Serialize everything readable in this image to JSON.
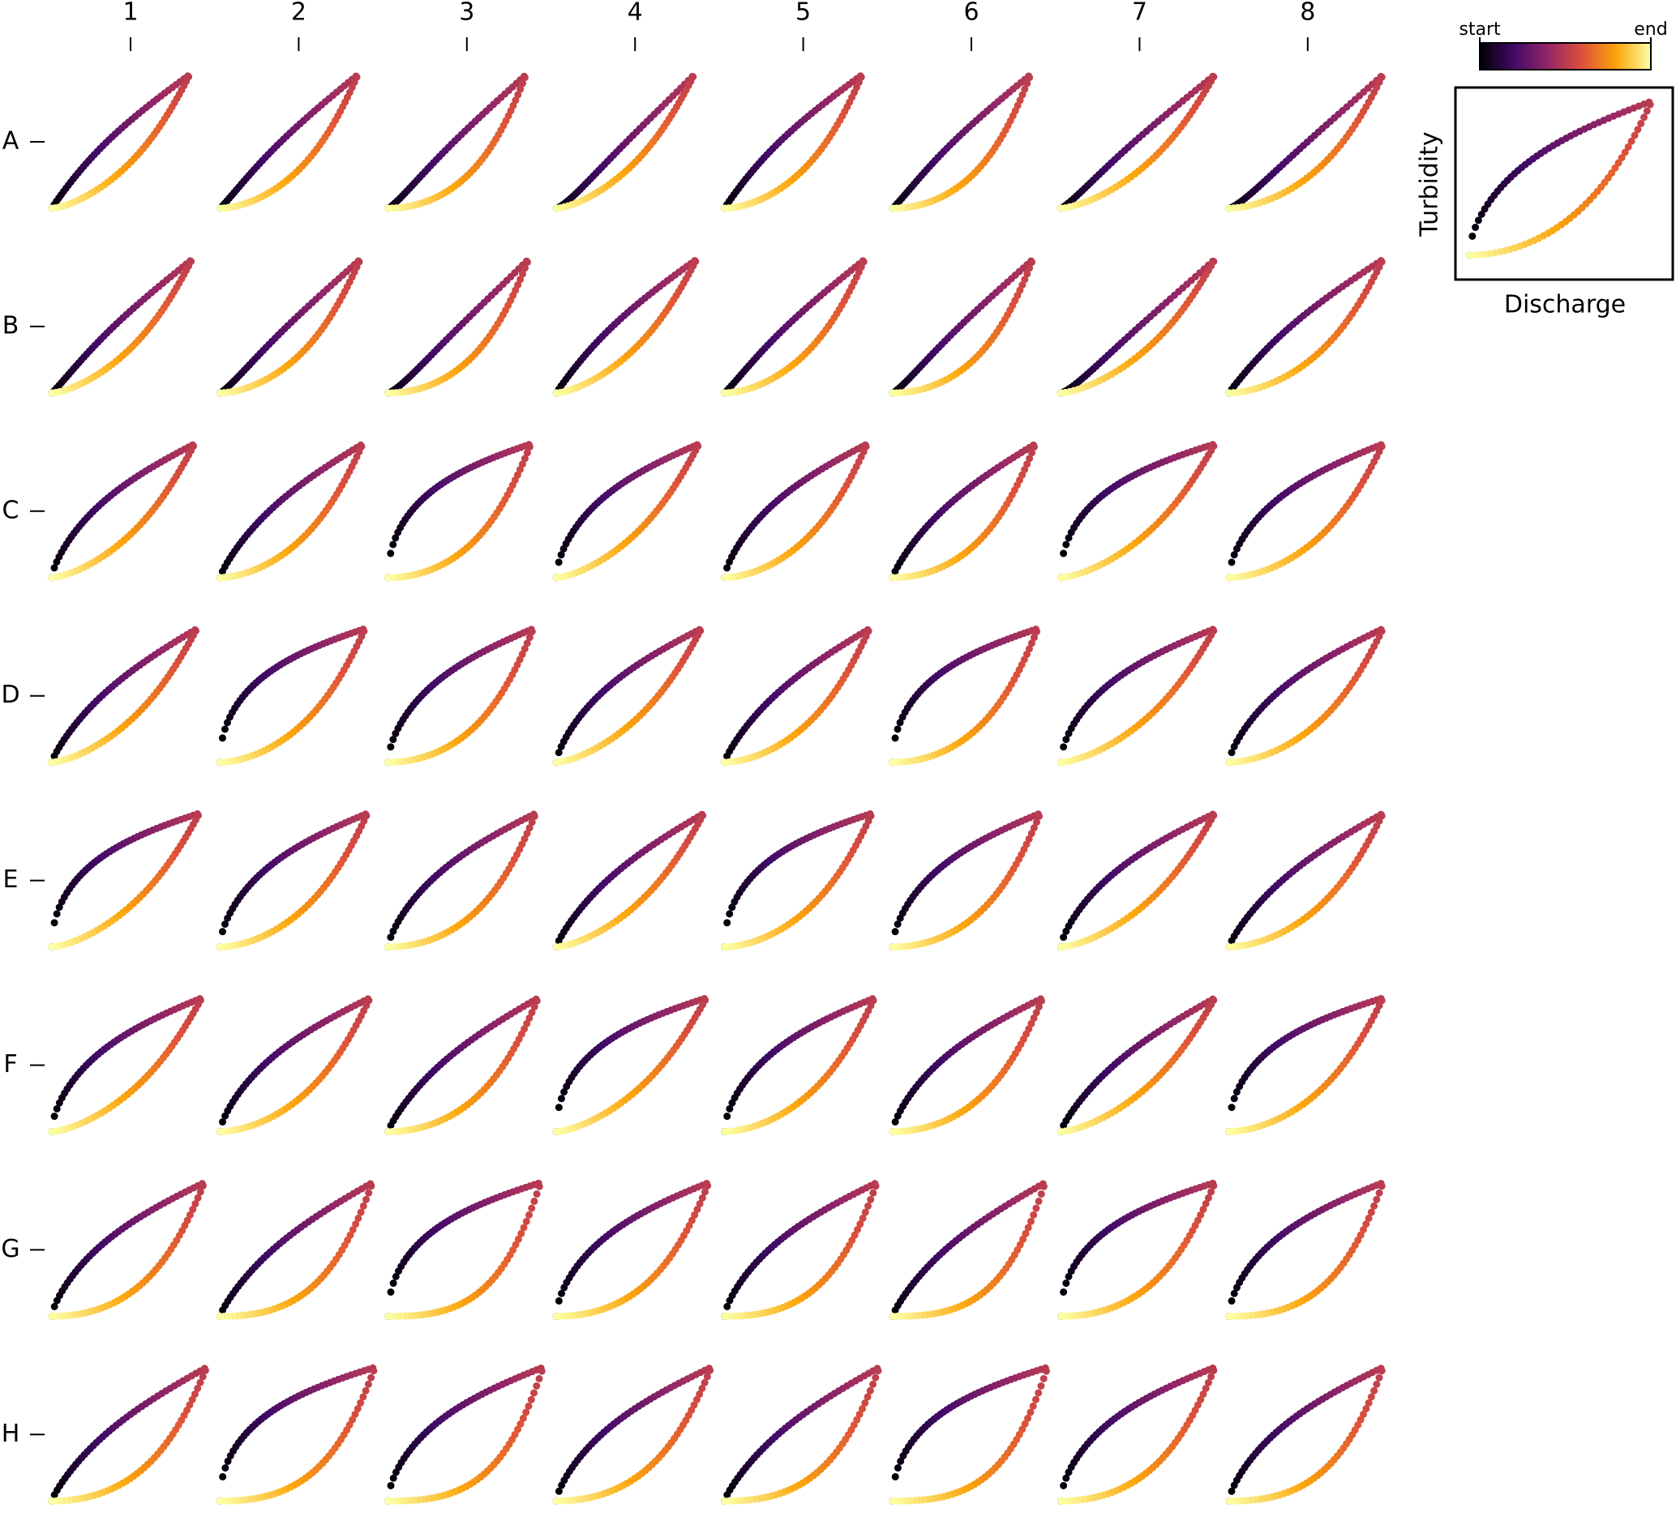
{
  "columns": [
    "1",
    "2",
    "3",
    "4",
    "5",
    "6",
    "7",
    "8"
  ],
  "rows": [
    "A",
    "B",
    "C",
    "D",
    "E",
    "F",
    "G",
    "H"
  ],
  "legend": {
    "start_label": "start",
    "end_label": "end",
    "y_label": "Turbidity",
    "x_label": "Discharge"
  }
}
